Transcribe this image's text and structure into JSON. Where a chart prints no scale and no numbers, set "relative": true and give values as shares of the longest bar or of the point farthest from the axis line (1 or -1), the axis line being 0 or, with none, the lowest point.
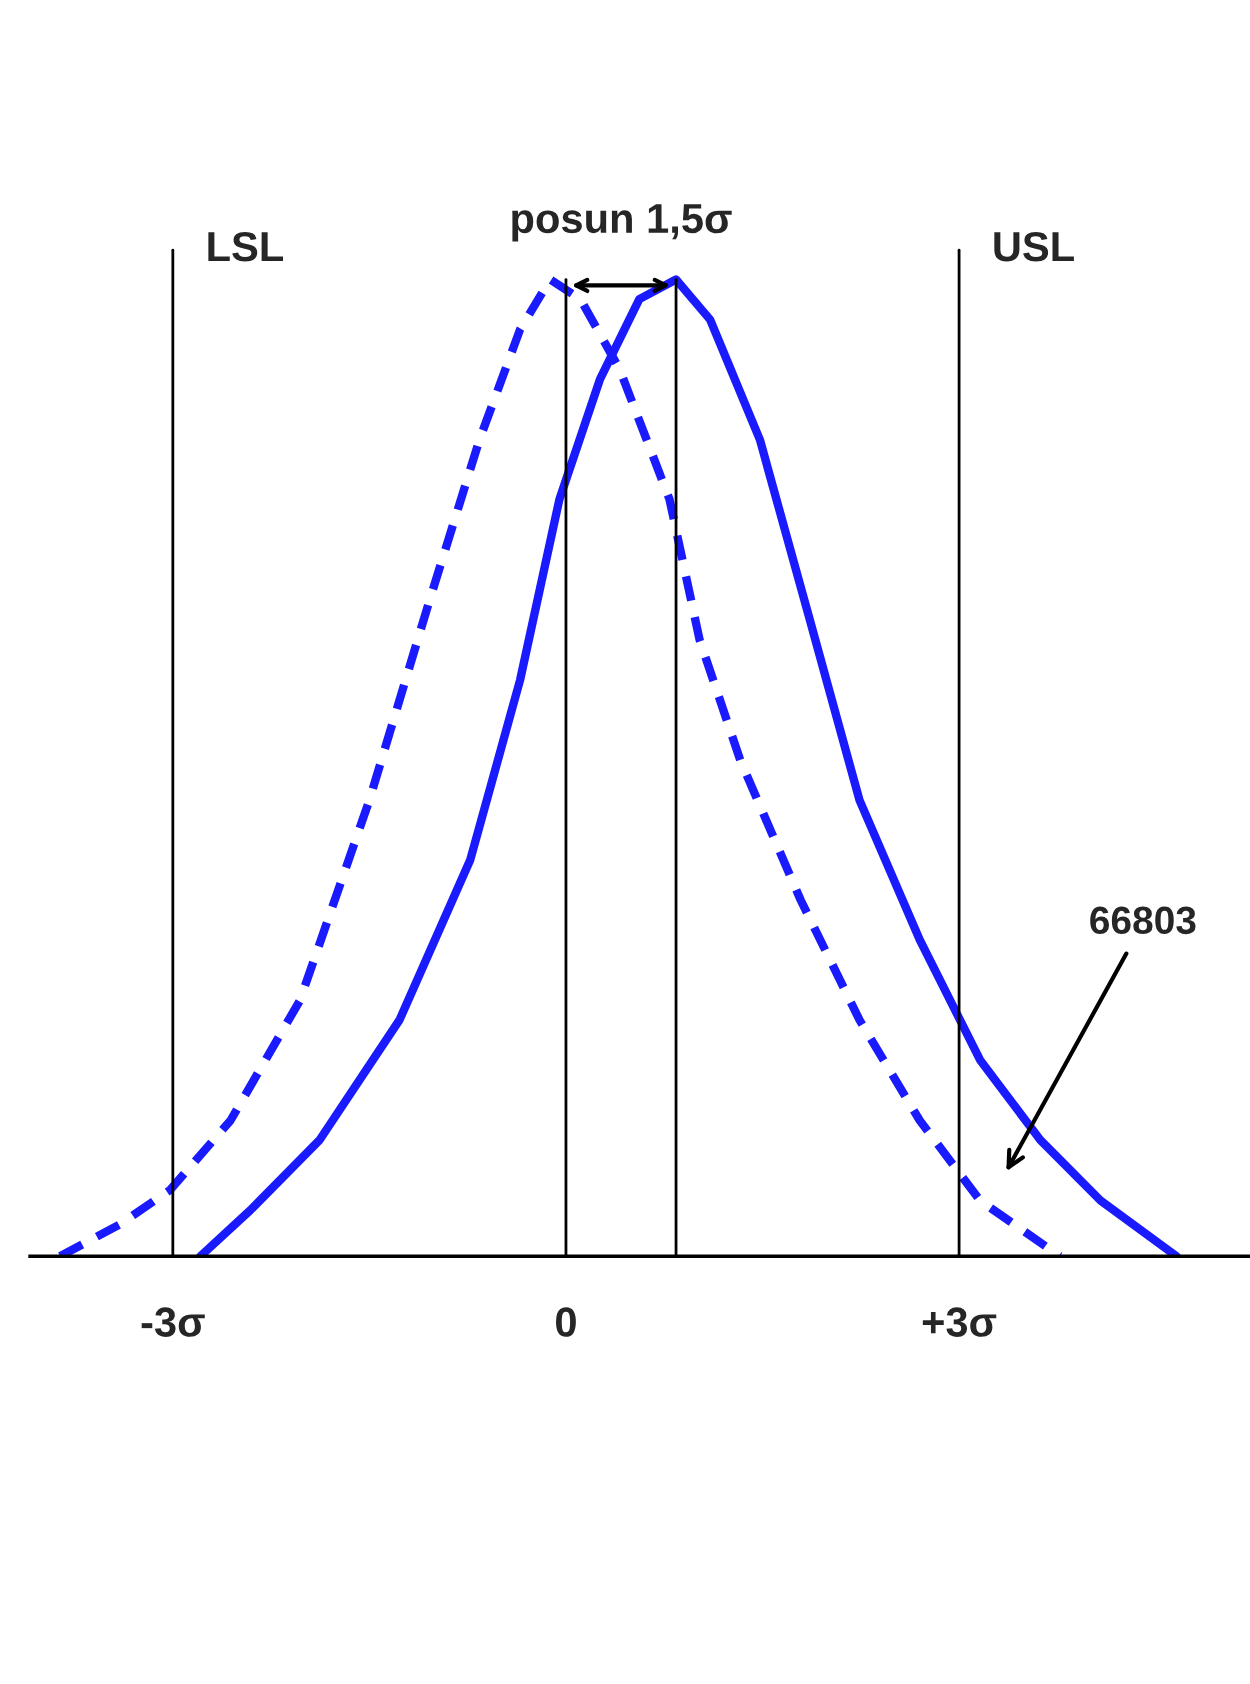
{
  "chart_data": {
    "type": "line",
    "relative": true,
    "xlim": [
      -4.09,
      5.22
    ],
    "xticks": [
      {
        "value": -3,
        "label": "-3σ"
      },
      {
        "value": 0,
        "label": "0"
      },
      {
        "value": 3,
        "label": "+3σ"
      }
    ],
    "tick_labels": "x",
    "grid": false,
    "legend": false,
    "marker": "none",
    "series": [
      {
        "color": "#1a1aff",
        "line_style": "dashed",
        "x": [
          -3.86,
          -3.4,
          -3.02,
          -2.56,
          -2.03,
          -1.5,
          -1.04,
          -0.66,
          -0.35,
          -0.12,
          0.11,
          0.41,
          0.79,
          1.02,
          1.33,
          1.79,
          2.24,
          2.7,
          3.16,
          3.77
        ],
        "values": [
          0,
          0.033,
          0.068,
          0.139,
          0.262,
          0.467,
          0.672,
          0.836,
          0.949,
          1.0,
          0.98,
          0.908,
          0.775,
          0.631,
          0.508,
          0.365,
          0.242,
          0.139,
          0.057,
          0
        ]
      },
      {
        "color": "#1a1aff",
        "line_style": "solid",
        "x": [
          -2.79,
          -2.41,
          -1.88,
          -1.27,
          -0.73,
          -0.35,
          -0.05,
          0.26,
          0.56,
          0.84,
          1.1,
          1.48,
          1.86,
          2.24,
          2.7,
          3.16,
          3.62,
          4.08,
          4.66
        ],
        "values": [
          0,
          0.047,
          0.119,
          0.242,
          0.406,
          0.59,
          0.775,
          0.898,
          0.98,
          1.0,
          0.959,
          0.836,
          0.652,
          0.467,
          0.324,
          0.201,
          0.119,
          0.057,
          0
        ]
      }
    ],
    "ref_lines": [
      {
        "axis": "x",
        "value": -3,
        "label": "LSL",
        "color": "#000000"
      },
      {
        "axis": "x",
        "value": 3,
        "label": "USL",
        "color": "#000000"
      },
      {
        "axis": "x",
        "value": 0,
        "color": "#000000"
      },
      {
        "axis": "x",
        "value": 0.84,
        "color": "#000000"
      }
    ],
    "annotations": [
      "posun 1,5σ",
      "66803"
    ]
  }
}
